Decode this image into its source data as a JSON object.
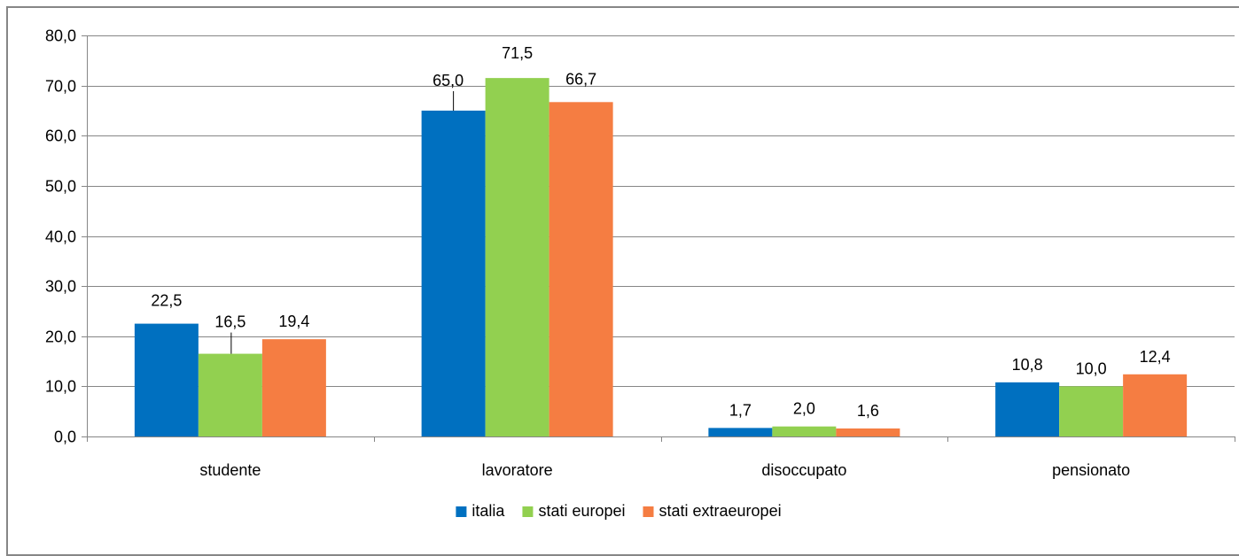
{
  "chart_data": {
    "type": "bar",
    "categories": [
      "studente",
      "lavoratore",
      "disoccupato",
      "pensionato"
    ],
    "series": [
      {
        "name": "italia",
        "color": "#0070C0",
        "values": [
          22.5,
          65.0,
          1.7,
          10.8
        ],
        "labels": [
          "22,5",
          "65,0",
          "1,7",
          "10,8"
        ]
      },
      {
        "name": "stati europei",
        "color": "#92D050",
        "values": [
          16.5,
          71.5,
          2.0,
          10.0
        ],
        "labels": [
          "16,5",
          "71,5",
          "2,0",
          "10,0"
        ]
      },
      {
        "name": "stati extraeuropei",
        "color": "#F57D42",
        "values": [
          19.4,
          66.7,
          1.6,
          12.4
        ],
        "labels": [
          "19,4",
          "66,7",
          "1,6",
          "12,4"
        ]
      }
    ],
    "ylim": [
      0,
      80
    ],
    "yticks": [
      "0,0",
      "10,0",
      "20,0",
      "30,0",
      "40,0",
      "50,0",
      "60,0",
      "70,0",
      "80,0"
    ],
    "grid": true,
    "legend": "bottom",
    "title": "",
    "xlabel": "",
    "ylabel": ""
  }
}
